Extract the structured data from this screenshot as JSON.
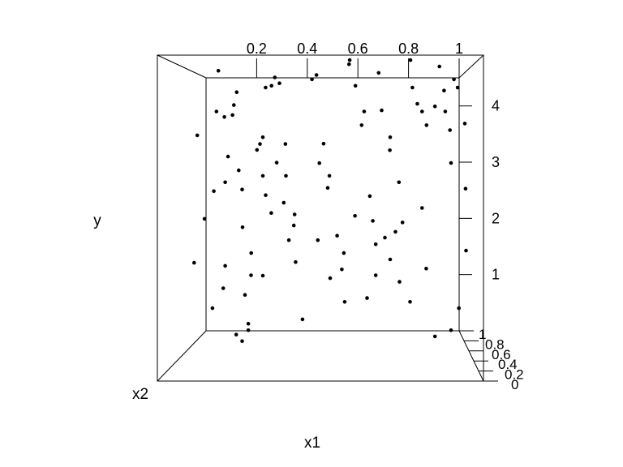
{
  "chart_data": {
    "type": "scatter",
    "title": "",
    "xlabel": "x1",
    "ylabel": "y",
    "zlabel": "x2",
    "x_ticks": [
      "0.2",
      "0.4",
      "0.6",
      "0.8",
      "1"
    ],
    "y_ticks": [
      "1",
      "2",
      "3",
      "4"
    ],
    "z_ticks": [
      "0",
      "0.2",
      "0.4",
      "0.6",
      "0.8",
      "1"
    ],
    "xlim": [
      0,
      1
    ],
    "ylim": [
      0,
      4.5
    ],
    "zlim": [
      0,
      1
    ],
    "grid": false,
    "legend": "none",
    "point_color": "#000000",
    "x": [
      0.14,
      0.12,
      0.16,
      0.16,
      0.15,
      0.15,
      0.13,
      0.12,
      0.18,
      0.19,
      0.32,
      0.33,
      0.31,
      0.28,
      0.28,
      0.27,
      0.29,
      0.3,
      0.22,
      0.21,
      0.24,
      0.25,
      0.27,
      0.23,
      0.2,
      0.23,
      0.22,
      0.31,
      0.26,
      0.28,
      0.35,
      0.36,
      0.36,
      0.39,
      0.38,
      0.37,
      0.4,
      0.45,
      0.46,
      0.49,
      0.48,
      0.51,
      0.5,
      0.47,
      0.54,
      0.56,
      0.55,
      0.58,
      0.58,
      0.6,
      0.63,
      0.62,
      0.65,
      0.66,
      0.67,
      0.67,
      0.64,
      0.68,
      0.69,
      0.72,
      0.72,
      0.75,
      0.76,
      0.74,
      0.72,
      0.75,
      0.79,
      0.8,
      0.81,
      0.83,
      0.85,
      0.83,
      0.84,
      0.89,
      0.9,
      0.88,
      0.91,
      0.92,
      0.94,
      0.96,
      0.97,
      0.93,
      0.98,
      0.99,
      0.95,
      0.93,
      0.1,
      0.12,
      0.15,
      0.11,
      0.21,
      0.23,
      0.25,
      0.44,
      0.52,
      0.57,
      0.6,
      0.7,
      0.78,
      0.86
    ],
    "y": [
      4.4,
      3.8,
      3.7,
      3.1,
      2.7,
      1.4,
      1.0,
      0.8,
      3.9,
      4.1,
      4.3,
      4.3,
      4.2,
      4.2,
      3.4,
      3.2,
      2.5,
      2.2,
      2.6,
      2.0,
      1.6,
      1.3,
      1.2,
      0.5,
      0.4,
      0.4,
      0.3,
      3.0,
      3.3,
      2.8,
      3.3,
      2.8,
      2.4,
      2.2,
      2.0,
      1.8,
      1.5,
      4.3,
      4.4,
      3.3,
      3.0,
      2.8,
      2.6,
      1.8,
      1.9,
      1.6,
      1.3,
      4.6,
      4.5,
      4.2,
      3.8,
      3.6,
      2.5,
      2.1,
      1.7,
      1.3,
      0.9,
      4.4,
      3.8,
      3.4,
      3.2,
      2.7,
      2.1,
      1.9,
      1.5,
      1.2,
      4.6,
      4.2,
      3.9,
      3.8,
      3.6,
      2.3,
      1.4,
      4.5,
      4.1,
      3.9,
      3.8,
      3.5,
      4.3,
      4.2,
      3.6,
      3.0,
      2.6,
      1.6,
      0.8,
      0.4,
      1.6,
      2.2,
      2.6,
      3.4,
      3.7,
      2.9,
      1.1,
      0.8,
      1.3,
      1.0,
      2.2,
      1.9,
      1.0,
      0.5
    ],
    "z": [
      0.6,
      0.5,
      0.6,
      0.5,
      0.5,
      0.5,
      0.4,
      0.6,
      0.5,
      0.5,
      0.3,
      0.6,
      0.5,
      0.4,
      0.5,
      0.6,
      0.5,
      0.4,
      0.6,
      0.5,
      0.5,
      0.6,
      0.4,
      0.5,
      0.6,
      0.5,
      0.6,
      0.3,
      0.4,
      0.5,
      0.4,
      0.5,
      0.6,
      0.5,
      0.4,
      0.5,
      0.6,
      0.5,
      0.4,
      0.5,
      0.6,
      0.5,
      0.4,
      0.5,
      0.6,
      0.5,
      0.4,
      0.5,
      0.6,
      0.5,
      0.5,
      0.4,
      0.6,
      0.5,
      0.4,
      0.6,
      0.5,
      0.5,
      0.6,
      0.5,
      0.4,
      0.5,
      0.6,
      0.4,
      0.5,
      0.6,
      0.5,
      0.4,
      0.6,
      0.5,
      0.4,
      0.5,
      0.6,
      0.5,
      0.6,
      0.4,
      0.5,
      0.6,
      0.5,
      0.4,
      0.6,
      0.5,
      0.5,
      0.4,
      0.6,
      0.5,
      0.9,
      0.8,
      0.8,
      0.9,
      0.8,
      0.8,
      0.8,
      0.9,
      0.7,
      0.8,
      0.6,
      0.7,
      0.8,
      0.8
    ]
  }
}
